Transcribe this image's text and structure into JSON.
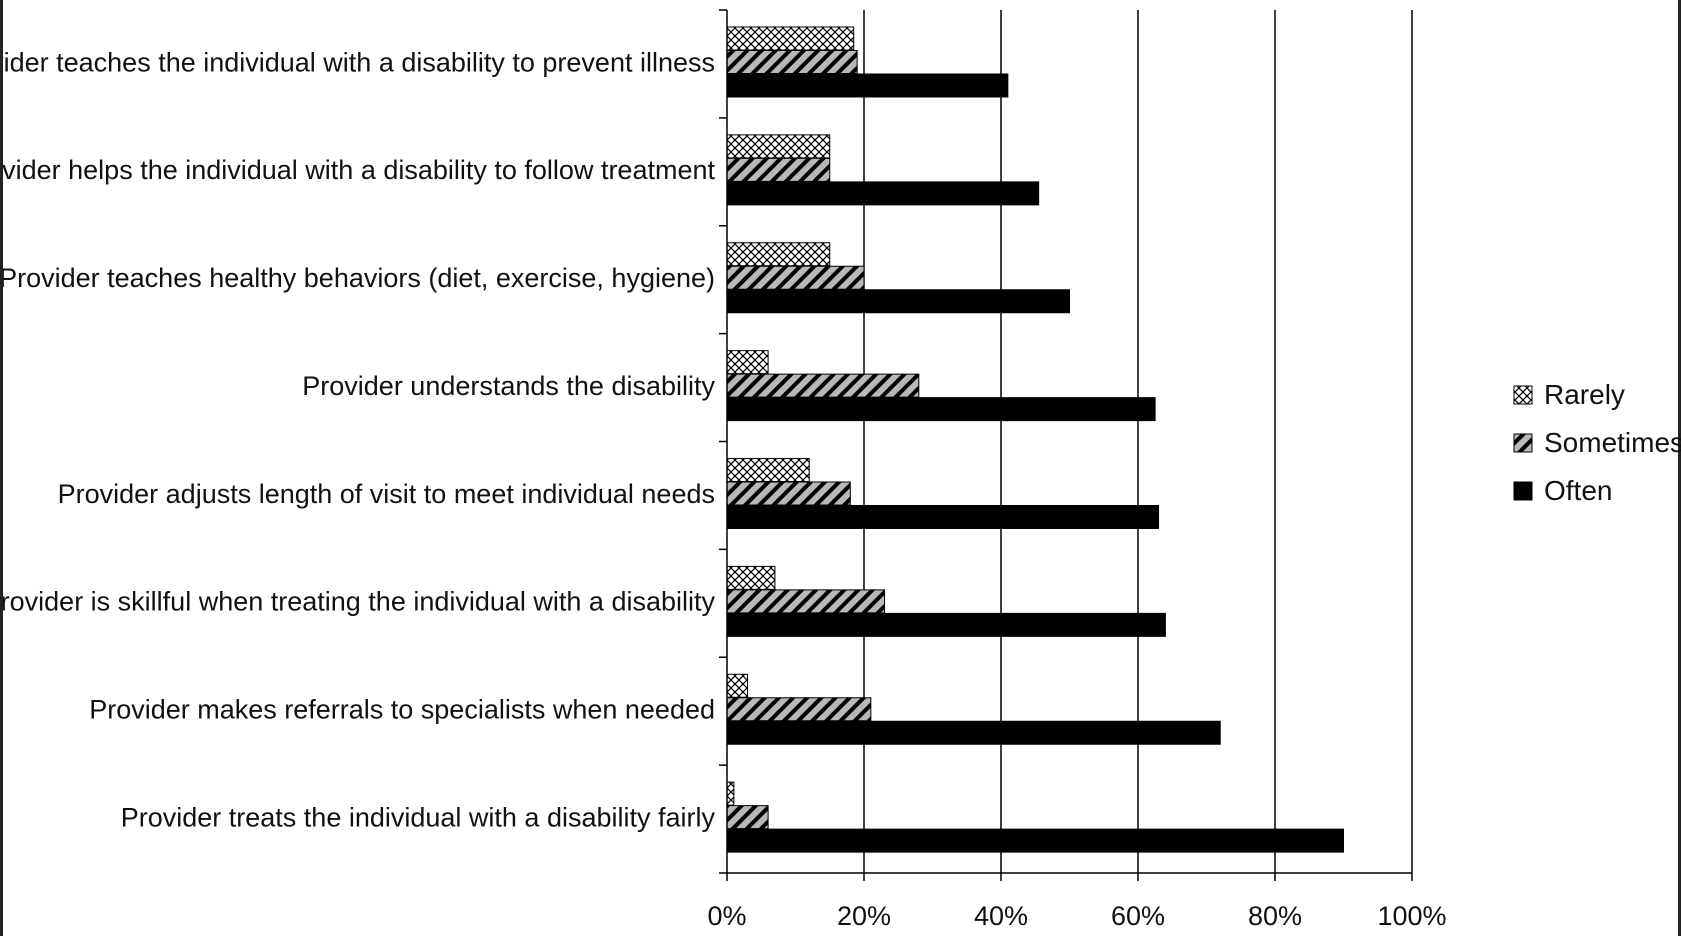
{
  "chart_data": {
    "type": "bar",
    "orientation": "horizontal",
    "categories": [
      "Provider teaches the individual with a disability to prevent illness",
      "Provider helps the individual with a disability to follow treatment",
      "Provider teaches healthy behaviors (diet, exercise, hygiene)",
      "Provider understands the disability",
      "Provider adjusts length of visit to meet individual needs",
      "Provider is skillful when treating the individual with a disability",
      "Provider makes referrals to specialists when needed",
      "Provider treats the individual with a disability fairly"
    ],
    "series": [
      {
        "name": "Rarely",
        "pattern": "crosshatch",
        "values": [
          18.5,
          15,
          15,
          6,
          12,
          7,
          3,
          1
        ]
      },
      {
        "name": "Sometimes",
        "pattern": "diagonal",
        "values": [
          19,
          15,
          20,
          28,
          18,
          23,
          21,
          6
        ]
      },
      {
        "name": "Often",
        "pattern": "solid",
        "values": [
          41,
          45.5,
          50,
          62.5,
          63,
          64,
          72,
          90
        ]
      }
    ],
    "xlim": [
      0,
      100
    ],
    "xticks": [
      "0%",
      "20%",
      "40%",
      "60%",
      "80%",
      "100%"
    ],
    "xlabel": "",
    "ylabel": "",
    "title": "",
    "grid": "vertical",
    "legend_position": "right",
    "colors": {
      "often": "#000000",
      "sometimes_fill": "#b8b8b8",
      "rarely_fill": "#e0e0e0",
      "outline": "#000000"
    }
  }
}
